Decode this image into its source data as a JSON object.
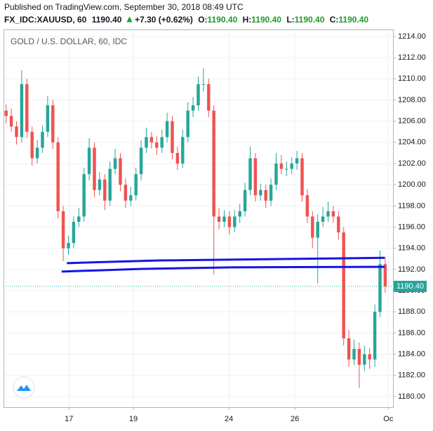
{
  "header": {
    "published": "Published on TradingView.com, September 30, 2018 08:49 UTC",
    "symbol": "FX_IDC:XAUUSD, 60",
    "price": "1190.40",
    "change": "+7.30 (+0.62%)",
    "o_label": "O:",
    "o": "1190.40",
    "h_label": "H:",
    "h": "1190.40",
    "l_label": "L:",
    "l": "1190.40",
    "c_label": "C:",
    "c": "1190.40"
  },
  "chart_data": {
    "type": "candlestick",
    "title": "GOLD / U.S. DOLLAR, 60, IDC",
    "up_color": "#26a69a",
    "down_color": "#ef5350",
    "grid": true,
    "open": [
      1207,
      1206.5,
      1205.5,
      1204.5,
      1209.5,
      1205,
      1202.5,
      1203.5,
      1205,
      1207.5,
      1204,
      1197.5,
      1194,
      1194.5,
      1196.5,
      1197,
      1201,
      1203.5,
      1199.5,
      1200.5,
      1198.5,
      1201.5,
      1202.5,
      1200,
      1198.5,
      1199,
      1201,
      1203.5,
      1204.5,
      1204,
      1203.5,
      1204.5,
      1206,
      1203,
      1202,
      1204.5,
      1207,
      1207.5,
      1209.5,
      1209.5,
      1207,
      1197,
      1196.5,
      1197,
      1196,
      1197,
      1197.5,
      1199.5,
      1202.5,
      1199,
      1199.5,
      1198.5,
      1200,
      1202,
      1201.5,
      1201.5,
      1202,
      1202.5,
      1199,
      1197,
      1195,
      1196.5,
      1197,
      1197.5,
      1197,
      1195.5,
      1185.5,
      1183.5,
      1184.5,
      1183,
      1184,
      1183.5,
      1188,
      1192.5
    ],
    "high": [
      1207.6,
      1207.2,
      1206,
      1210.8,
      1210,
      1205.5,
      1204.2,
      1205.6,
      1208.4,
      1208,
      1204.5,
      1198,
      1195.2,
      1197,
      1197.8,
      1201.6,
      1204.4,
      1204,
      1201.2,
      1201,
      1202.2,
      1203.4,
      1203,
      1200.6,
      1199.8,
      1201.6,
      1204.2,
      1205.4,
      1205,
      1204.6,
      1205.2,
      1206.8,
      1206.5,
      1203.6,
      1205.2,
      1207.8,
      1208.3,
      1210.2,
      1211,
      1210,
      1207.5,
      1197.8,
      1197.6,
      1197.5,
      1197.6,
      1198.2,
      1200.2,
      1203.6,
      1203,
      1200.1,
      1200,
      1200.6,
      1203,
      1202.8,
      1202.2,
      1202.6,
      1203.2,
      1203,
      1199.6,
      1197.5,
      1197.2,
      1197.9,
      1198.4,
      1198,
      1197.5,
      1196,
      1186.3,
      1185.4,
      1185.1,
      1184.8,
      1184.6,
      1188.7,
      1193.8,
      1193.2
    ],
    "low": [
      1205.8,
      1205,
      1203.8,
      1204,
      1204.4,
      1201.8,
      1202,
      1203,
      1204.5,
      1203.4,
      1196.8,
      1192.8,
      1193.4,
      1194,
      1196,
      1196.5,
      1200.4,
      1198.8,
      1199,
      1197.6,
      1198,
      1201,
      1199.4,
      1197.8,
      1198,
      1198.5,
      1200.4,
      1203,
      1203.4,
      1202.8,
      1203,
      1204,
      1202.4,
      1201.4,
      1201.6,
      1204,
      1206.4,
      1207,
      1208.8,
      1206.4,
      1191.5,
      1195.8,
      1196,
      1195.3,
      1195.5,
      1196.4,
      1197,
      1199,
      1198.4,
      1198.5,
      1197.8,
      1198,
      1199.5,
      1201,
      1200.8,
      1201,
      1201.4,
      1198.4,
      1196.4,
      1194,
      1190.7,
      1196,
      1196.5,
      1196.4,
      1194.8,
      1184.8,
      1182.8,
      1183,
      1180.8,
      1182.4,
      1182.6,
      1182.8,
      1187.5,
      1189.8
    ],
    "close": [
      1206.5,
      1205.5,
      1204.5,
      1209.5,
      1205,
      1202.5,
      1203.5,
      1205,
      1207.5,
      1204,
      1197.5,
      1194,
      1194.5,
      1196.5,
      1197,
      1201,
      1203.5,
      1199.5,
      1200.5,
      1198.5,
      1201.5,
      1202.5,
      1200,
      1198.5,
      1199,
      1201,
      1203.5,
      1204.5,
      1204,
      1203.5,
      1204.5,
      1206,
      1203,
      1202,
      1204.5,
      1207,
      1207.5,
      1209.5,
      1209.5,
      1207,
      1197,
      1196.5,
      1197,
      1196,
      1197,
      1197.5,
      1199.5,
      1202.5,
      1199,
      1199.5,
      1198.5,
      1200,
      1202,
      1201.5,
      1201.5,
      1202,
      1202.5,
      1199,
      1197,
      1195,
      1196.5,
      1197,
      1197.5,
      1197,
      1195.5,
      1185.5,
      1183.5,
      1184.5,
      1183,
      1184,
      1183.5,
      1188,
      1192.5,
      1190.4
    ],
    "last_price": 1190.4,
    "last_price_label": "1190.40",
    "trend_lines": [
      {
        "color": "#1515e6",
        "points": [
          [
            12.2,
            1192.6
          ],
          [
            30,
            1192.85
          ],
          [
            73.4,
            1193.1
          ]
        ]
      },
      {
        "color": "#1515e6",
        "points": [
          [
            11.2,
            1191.8
          ],
          [
            26.4,
            1192.05
          ],
          [
            43.9,
            1192.2
          ],
          [
            73.4,
            1192.25
          ]
        ]
      }
    ],
    "xlim": [
      0,
      75
    ],
    "xticks": [
      {
        "value": 12.6,
        "label": "17"
      },
      {
        "value": 25,
        "label": "19"
      },
      {
        "value": 43.4,
        "label": "24"
      },
      {
        "value": 56.1,
        "label": "26"
      },
      {
        "value": 74.1,
        "label": "Oc"
      }
    ],
    "ylim": [
      1179.0,
      1214.66
    ],
    "yticks": [
      {
        "value": 1180,
        "label": "1180.00"
      },
      {
        "value": 1182,
        "label": "1182.00"
      },
      {
        "value": 1184,
        "label": "1184.00"
      },
      {
        "value": 1186,
        "label": "1186.00"
      },
      {
        "value": 1188,
        "label": "1188.00"
      },
      {
        "value": 1190,
        "label": "1190.00"
      },
      {
        "value": 1192,
        "label": "1192.00"
      },
      {
        "value": 1194,
        "label": "1194.00"
      },
      {
        "value": 1196,
        "label": "1196.00"
      },
      {
        "value": 1198,
        "label": "1198.00"
      },
      {
        "value": 1200,
        "label": "1200.00"
      },
      {
        "value": 1202,
        "label": "1202.00"
      },
      {
        "value": 1204,
        "label": "1204.00"
      },
      {
        "value": 1206,
        "label": "1206.00"
      },
      {
        "value": 1208,
        "label": "1208.00"
      },
      {
        "value": 1210,
        "label": "1210.00"
      },
      {
        "value": 1212,
        "label": "1212.00"
      },
      {
        "value": 1214,
        "label": "1214.00"
      }
    ]
  }
}
